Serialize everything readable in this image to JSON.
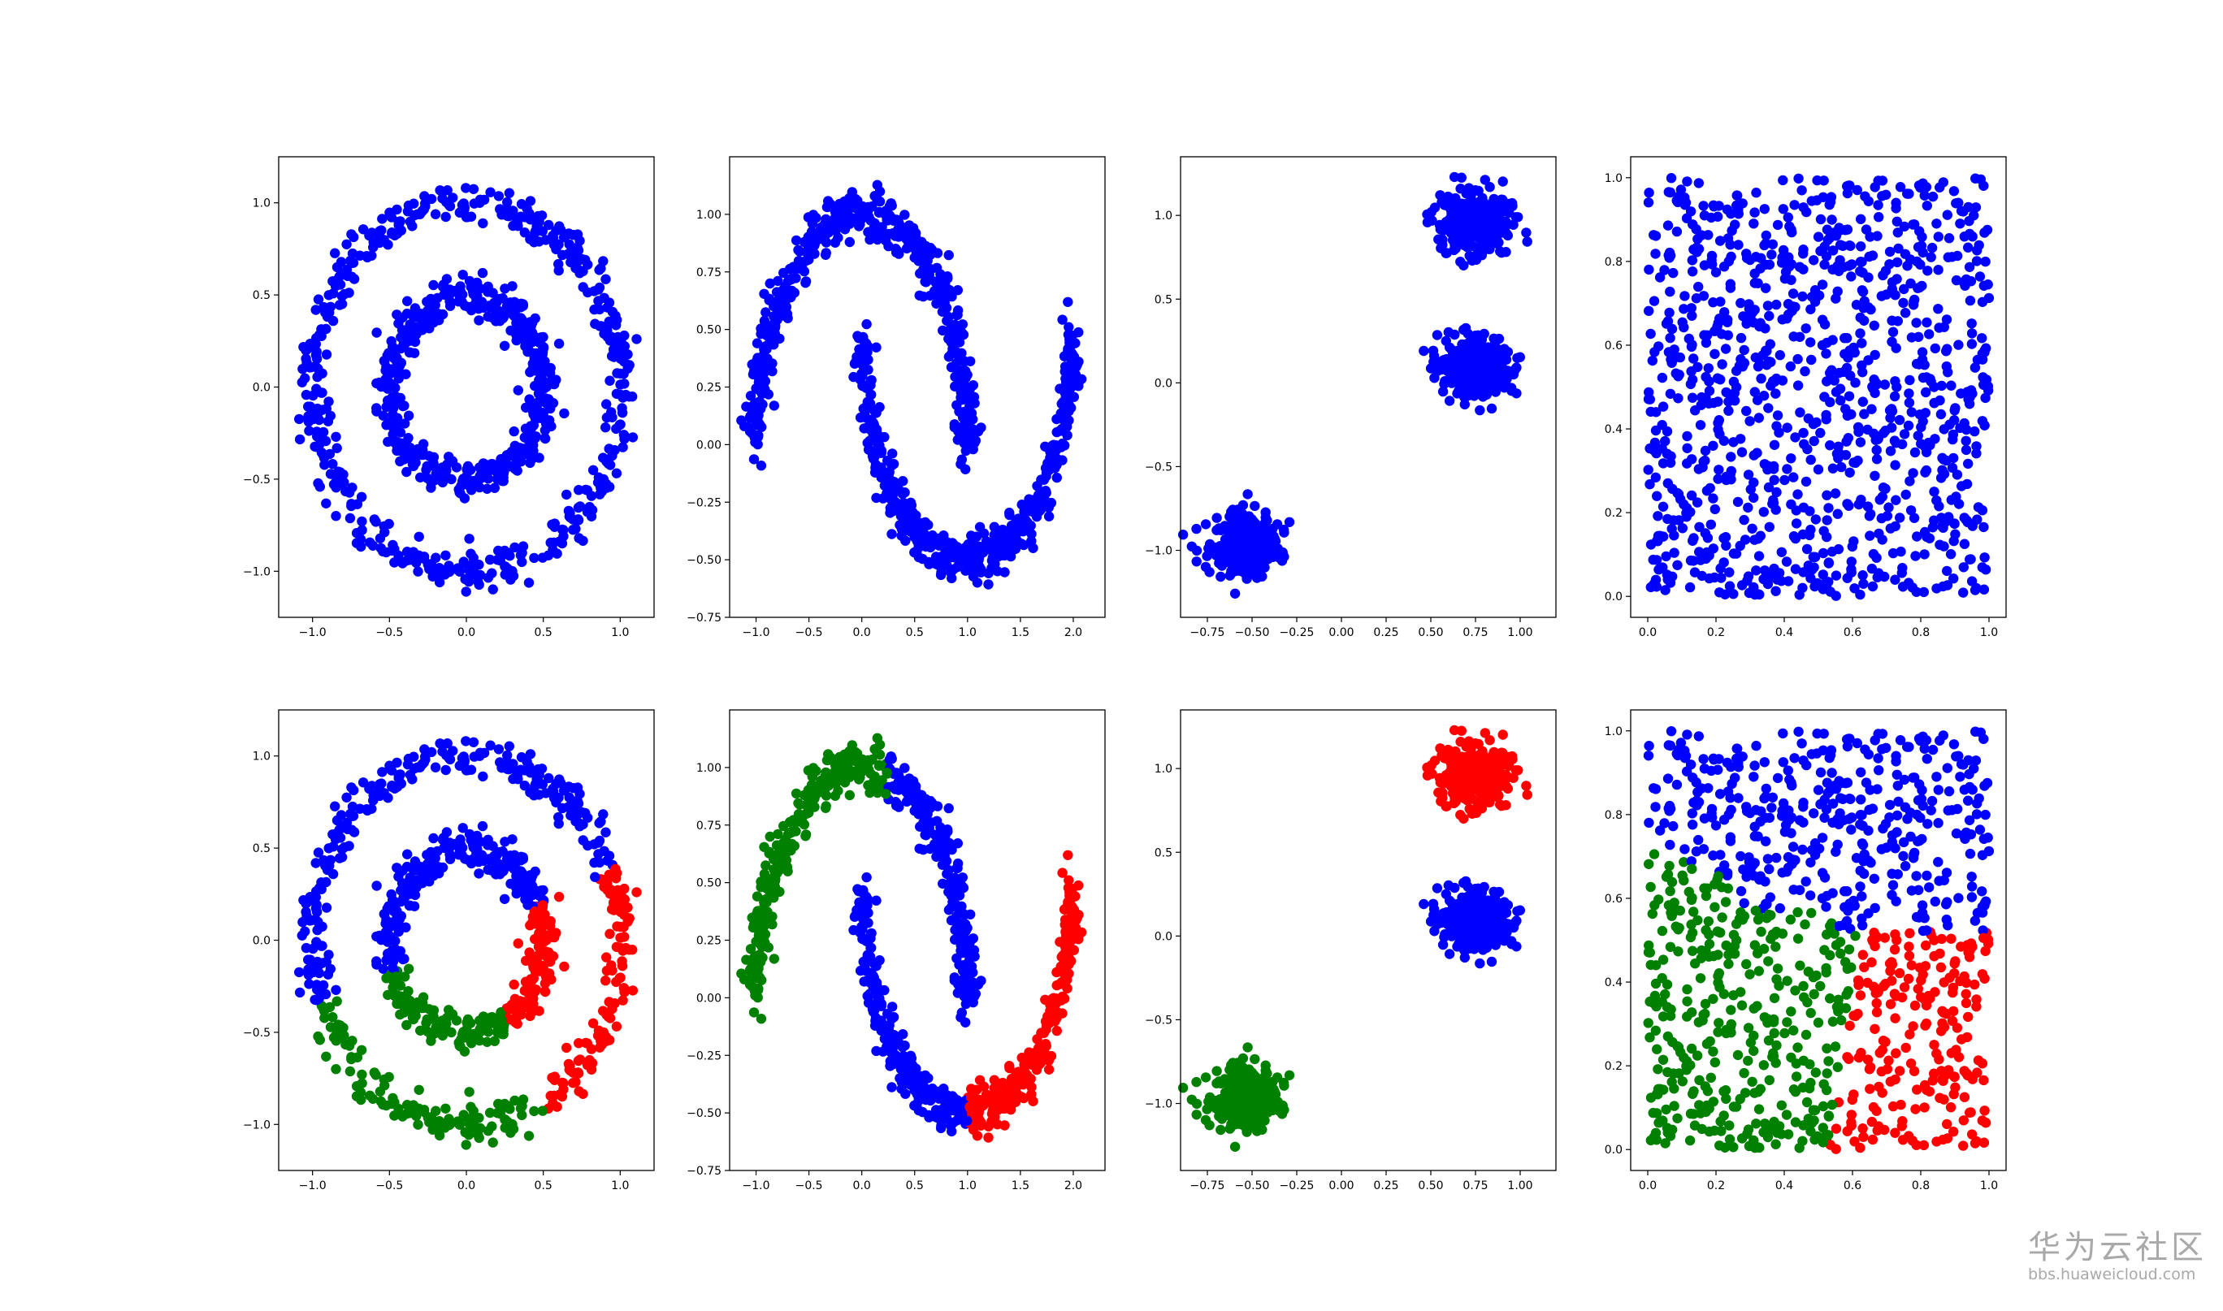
{
  "colors": {
    "c0": "#0000ff",
    "c1": "#ff0000",
    "c2": "#008000",
    "axis": "#000000"
  },
  "watermark": {
    "title": "华为云社区",
    "url": "bbs.huaweicloud.com"
  },
  "chart_data": [
    {
      "type": "scatter",
      "dataset": "circles",
      "row": 0,
      "col": 0,
      "colored": false,
      "grid": false,
      "xlim": [
        -1.22,
        1.22
      ],
      "ylim": [
        -1.25,
        1.25
      ],
      "xticks": [
        -1.0,
        -0.5,
        0.0,
        0.5,
        1.0
      ],
      "xtick_labels": [
        "−1.0",
        "−0.5",
        "0.0",
        "0.5",
        "1.0"
      ],
      "yticks": [
        -1.0,
        -0.5,
        0.0,
        0.5,
        1.0
      ],
      "ytick_labels": [
        "−1.0",
        "−0.5",
        "0.0",
        "0.5",
        "1.0"
      ],
      "xlabel": "",
      "ylabel": "",
      "title": "",
      "series": [
        {
          "shape": "ring",
          "cx": 0,
          "cy": 0,
          "r": 1.0,
          "noise": 0.05,
          "n": 500,
          "color": "#0000ff"
        },
        {
          "shape": "ring",
          "cx": 0,
          "cy": 0,
          "r": 0.5,
          "noise": 0.05,
          "n": 500,
          "color": "#0000ff"
        }
      ]
    },
    {
      "type": "scatter",
      "dataset": "moons",
      "row": 0,
      "col": 1,
      "colored": false,
      "grid": false,
      "xlim": [
        -1.25,
        2.3
      ],
      "ylim": [
        -0.75,
        1.25
      ],
      "xticks": [
        -1.0,
        -0.5,
        0.0,
        0.5,
        1.0,
        1.5,
        2.0
      ],
      "xtick_labels": [
        "−1.0",
        "−0.5",
        "0.0",
        "0.5",
        "1.0",
        "1.5",
        "2.0"
      ],
      "yticks": [
        -0.75,
        -0.5,
        -0.25,
        0.0,
        0.25,
        0.5,
        0.75,
        1.0
      ],
      "ytick_labels": [
        "−0.75",
        "−0.50",
        "−0.25",
        "0.00",
        "0.25",
        "0.50",
        "0.75",
        "1.00"
      ],
      "xlabel": "",
      "ylabel": "",
      "title": "",
      "series": [
        {
          "shape": "upper-moon",
          "n": 500,
          "noise": 0.05,
          "color": "#0000ff"
        },
        {
          "shape": "lower-moon",
          "n": 500,
          "noise": 0.05,
          "color": "#0000ff"
        }
      ]
    },
    {
      "type": "scatter",
      "dataset": "blobs",
      "row": 0,
      "col": 2,
      "colored": false,
      "grid": false,
      "xlim": [
        -0.9,
        1.2
      ],
      "ylim": [
        -1.4,
        1.35
      ],
      "xticks": [
        -0.75,
        -0.5,
        -0.25,
        0.0,
        0.25,
        0.5,
        0.75,
        1.0
      ],
      "xtick_labels": [
        "−0.75",
        "−0.50",
        "−0.25",
        "0.00",
        "0.25",
        "0.50",
        "0.75",
        "1.00"
      ],
      "yticks": [
        -1.0,
        -0.5,
        0.0,
        0.5,
        1.0
      ],
      "ytick_labels": [
        "−1.0",
        "−0.5",
        "0.0",
        "0.5",
        "1.0"
      ],
      "xlabel": "",
      "ylabel": "",
      "title": "",
      "series": [
        {
          "shape": "blob",
          "cx": 0.75,
          "cy": 0.95,
          "sx": 0.1,
          "sy": 0.09,
          "n": 330,
          "color": "#0000ff"
        },
        {
          "shape": "blob",
          "cx": 0.75,
          "cy": 0.1,
          "sx": 0.1,
          "sy": 0.09,
          "n": 330,
          "color": "#0000ff"
        },
        {
          "shape": "blob",
          "cx": -0.55,
          "cy": -0.97,
          "sx": 0.1,
          "sy": 0.09,
          "n": 330,
          "color": "#0000ff"
        }
      ]
    },
    {
      "type": "scatter",
      "dataset": "uniform",
      "row": 0,
      "col": 3,
      "colored": false,
      "grid": false,
      "xlim": [
        -0.05,
        1.05
      ],
      "ylim": [
        -0.05,
        1.05
      ],
      "xticks": [
        0.0,
        0.2,
        0.4,
        0.6,
        0.8,
        1.0
      ],
      "xtick_labels": [
        "0.0",
        "0.2",
        "0.4",
        "0.6",
        "0.8",
        "1.0"
      ],
      "yticks": [
        0.0,
        0.2,
        0.4,
        0.6,
        0.8,
        1.0
      ],
      "ytick_labels": [
        "0.0",
        "0.2",
        "0.4",
        "0.6",
        "0.8",
        "1.0"
      ],
      "xlabel": "",
      "ylabel": "",
      "title": "",
      "series": [
        {
          "shape": "uniform",
          "n": 1000,
          "color": "#0000ff"
        }
      ]
    },
    {
      "type": "scatter",
      "dataset": "circles",
      "row": 1,
      "col": 0,
      "colored": true,
      "grid": false,
      "xlim": [
        -1.22,
        1.22
      ],
      "ylim": [
        -1.25,
        1.25
      ],
      "xticks": [
        -1.0,
        -0.5,
        0.0,
        0.5,
        1.0
      ],
      "xtick_labels": [
        "−1.0",
        "−0.5",
        "0.0",
        "0.5",
        "1.0"
      ],
      "yticks": [
        -1.0,
        -0.5,
        0.0,
        0.5,
        1.0
      ],
      "ytick_labels": [
        "−1.0",
        "−0.5",
        "0.0",
        "0.5",
        "1.0"
      ],
      "xlabel": "",
      "ylabel": "",
      "title": "",
      "series": [
        {
          "shape": "ring",
          "cx": 0,
          "cy": 0,
          "r": 1.0,
          "noise": 0.05,
          "n": 500,
          "color": "#0000ff"
        },
        {
          "shape": "ring",
          "cx": 0,
          "cy": 0,
          "r": 0.5,
          "noise": 0.05,
          "n": 500,
          "color": "#0000ff"
        }
      ],
      "clusters": {
        "method": "angle-sector",
        "sectors": [
          {
            "color": "#ff0000",
            "from_deg": -60,
            "to_deg": 22
          },
          {
            "color": "#008000",
            "from_deg": -160,
            "to_deg": -60
          },
          {
            "color": "#0000ff",
            "from_deg": 22,
            "to_deg": 200
          }
        ]
      }
    },
    {
      "type": "scatter",
      "dataset": "moons",
      "row": 1,
      "col": 1,
      "colored": true,
      "grid": false,
      "xlim": [
        -1.25,
        2.3
      ],
      "ylim": [
        -0.75,
        1.25
      ],
      "xticks": [
        -1.0,
        -0.5,
        0.0,
        0.5,
        1.0,
        1.5,
        2.0
      ],
      "xtick_labels": [
        "−1.0",
        "−0.5",
        "0.0",
        "0.5",
        "1.0",
        "1.5",
        "2.0"
      ],
      "yticks": [
        -0.75,
        -0.5,
        -0.25,
        0.0,
        0.25,
        0.5,
        0.75,
        1.0
      ],
      "ytick_labels": [
        "−0.75",
        "−0.50",
        "−0.25",
        "0.00",
        "0.25",
        "0.50",
        "0.75",
        "1.00"
      ],
      "xlabel": "",
      "ylabel": "",
      "title": "",
      "series": [
        {
          "shape": "upper-moon",
          "n": 500,
          "noise": 0.05,
          "color": "#0000ff"
        },
        {
          "shape": "lower-moon",
          "n": 500,
          "noise": 0.05,
          "color": "#0000ff"
        }
      ],
      "clusters": {
        "method": "x-split",
        "rules": [
          {
            "color": "#008000",
            "moon": "upper",
            "x_max": 0.25
          },
          {
            "color": "#ff0000",
            "moon": "lower",
            "x_min": 1.0
          },
          {
            "color": "#0000ff",
            "otherwise": true
          }
        ]
      }
    },
    {
      "type": "scatter",
      "dataset": "blobs",
      "row": 1,
      "col": 2,
      "colored": true,
      "grid": false,
      "xlim": [
        -0.9,
        1.2
      ],
      "ylim": [
        -1.4,
        1.35
      ],
      "xticks": [
        -0.75,
        -0.5,
        -0.25,
        0.0,
        0.25,
        0.5,
        0.75,
        1.0
      ],
      "xtick_labels": [
        "−0.75",
        "−0.50",
        "−0.25",
        "0.00",
        "0.25",
        "0.50",
        "0.75",
        "1.00"
      ],
      "yticks": [
        -1.0,
        -0.5,
        0.0,
        0.5,
        1.0
      ],
      "ytick_labels": [
        "−1.0",
        "−0.5",
        "0.0",
        "0.5",
        "1.0"
      ],
      "xlabel": "",
      "ylabel": "",
      "title": "",
      "series": [
        {
          "shape": "blob",
          "cx": 0.75,
          "cy": 0.95,
          "sx": 0.1,
          "sy": 0.09,
          "n": 330,
          "color": "#ff0000"
        },
        {
          "shape": "blob",
          "cx": 0.75,
          "cy": 0.1,
          "sx": 0.1,
          "sy": 0.09,
          "n": 330,
          "color": "#0000ff"
        },
        {
          "shape": "blob",
          "cx": -0.55,
          "cy": -0.97,
          "sx": 0.1,
          "sy": 0.09,
          "n": 330,
          "color": "#008000"
        }
      ]
    },
    {
      "type": "scatter",
      "dataset": "uniform",
      "row": 1,
      "col": 3,
      "colored": true,
      "grid": false,
      "xlim": [
        -0.05,
        1.05
      ],
      "ylim": [
        -0.05,
        1.05
      ],
      "xticks": [
        0.0,
        0.2,
        0.4,
        0.6,
        0.8,
        1.0
      ],
      "xtick_labels": [
        "0.0",
        "0.2",
        "0.4",
        "0.6",
        "0.8",
        "1.0"
      ],
      "yticks": [
        0.0,
        0.2,
        0.4,
        0.6,
        0.8,
        1.0
      ],
      "ytick_labels": [
        "0.0",
        "0.2",
        "0.4",
        "0.6",
        "0.8",
        "1.0"
      ],
      "xlabel": "",
      "ylabel": "",
      "title": "",
      "series": [
        {
          "shape": "uniform",
          "n": 1000,
          "color": "#0000ff"
        }
      ],
      "clusters": {
        "method": "region",
        "rules": [
          {
            "color": "#0000ff",
            "region": "top"
          },
          {
            "color": "#008000",
            "region": "bottom-left"
          },
          {
            "color": "#ff0000",
            "region": "bottom-right"
          }
        ]
      }
    }
  ]
}
